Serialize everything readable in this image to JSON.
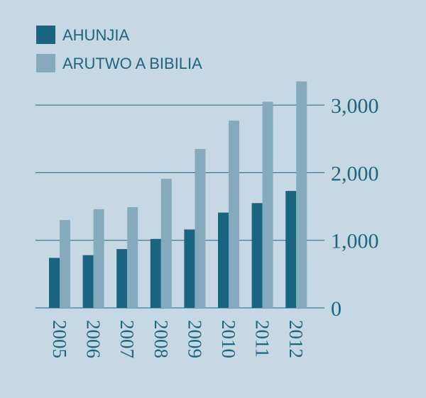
{
  "chart_data": {
    "type": "bar",
    "title": "",
    "xlabel": "",
    "ylabel": "",
    "categories": [
      "2005",
      "2006",
      "2007",
      "2008",
      "2009",
      "2010",
      "2011",
      "2012"
    ],
    "series": [
      {
        "name": "AHUNJIA",
        "color": "#1b6480",
        "values": [
          740,
          780,
          870,
          1020,
          1160,
          1410,
          1550,
          1730
        ]
      },
      {
        "name": "ARUTWO A BIBILIA",
        "color": "#86aabd",
        "values": [
          1300,
          1460,
          1490,
          1910,
          2350,
          2770,
          3050,
          3350
        ]
      }
    ],
    "yticks": [
      0,
      1000,
      2000,
      3000
    ],
    "ytick_labels": [
      "0",
      "1,000",
      "2,000",
      "3,000"
    ],
    "ylim": [
      0,
      3400
    ],
    "grid": true,
    "legend_position": "top-left",
    "axis_position": "right"
  }
}
